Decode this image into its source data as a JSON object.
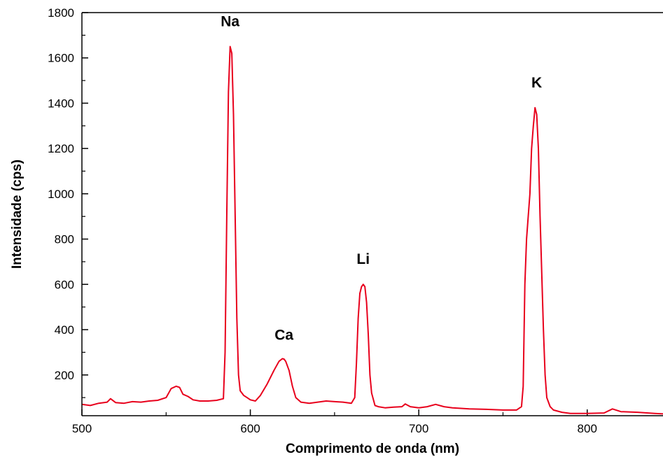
{
  "chart_data": {
    "type": "line",
    "title": "",
    "xlabel": "Comprimento de onda (nm)",
    "ylabel": "Intensidade (cps)",
    "xlim": [
      500,
      845
    ],
    "ylim": [
      20,
      1800
    ],
    "x_ticks": [
      500,
      600,
      700,
      800
    ],
    "y_ticks": [
      200,
      400,
      600,
      800,
      1000,
      1200,
      1400,
      1600,
      1800
    ],
    "grid": false,
    "line_color": "#e8001c",
    "series": [
      {
        "x": [
          500,
          505,
          510,
          515,
          517,
          520,
          525,
          530,
          535,
          540,
          545,
          550,
          553,
          556,
          558,
          560,
          563,
          566,
          570,
          575,
          580,
          584,
          585,
          586,
          587,
          588,
          589,
          590,
          591,
          592,
          593,
          594,
          596,
          598,
          600,
          603,
          606,
          610,
          614,
          617,
          619,
          620,
          621,
          623,
          625,
          627,
          630,
          635,
          640,
          645,
          650,
          655,
          660,
          662,
          663,
          664,
          665,
          666,
          667,
          668,
          669,
          670,
          671,
          672,
          674,
          676,
          680,
          685,
          690,
          692,
          695,
          700,
          705,
          710,
          715,
          720,
          730,
          740,
          750,
          758,
          761,
          762,
          763,
          764,
          765,
          766,
          767,
          768,
          769,
          770,
          771,
          772,
          773,
          774,
          775,
          776,
          778,
          780,
          785,
          790,
          800,
          810,
          815,
          820,
          830,
          840,
          845
        ],
        "y": [
          70,
          65,
          75,
          80,
          95,
          78,
          75,
          82,
          80,
          85,
          88,
          100,
          140,
          150,
          145,
          115,
          105,
          90,
          85,
          85,
          88,
          95,
          300,
          900,
          1450,
          1650,
          1620,
          1350,
          900,
          450,
          200,
          130,
          110,
          100,
          90,
          85,
          110,
          160,
          220,
          260,
          272,
          270,
          260,
          220,
          150,
          100,
          80,
          75,
          80,
          85,
          82,
          80,
          75,
          100,
          250,
          450,
          560,
          590,
          600,
          590,
          520,
          380,
          200,
          120,
          65,
          60,
          55,
          58,
          60,
          72,
          60,
          55,
          60,
          70,
          60,
          55,
          50,
          48,
          45,
          45,
          60,
          150,
          600,
          800,
          900,
          1000,
          1200,
          1300,
          1380,
          1350,
          1200,
          900,
          650,
          400,
          200,
          100,
          60,
          45,
          35,
          30,
          30,
          32,
          50,
          38,
          35,
          30,
          28
        ]
      }
    ],
    "annotations": [
      {
        "text": "Na",
        "x": 588,
        "y": 1740
      },
      {
        "text": "Ca",
        "x": 620,
        "y": 355
      },
      {
        "text": "Li",
        "x": 667,
        "y": 690
      },
      {
        "text": "K",
        "x": 770,
        "y": 1470
      }
    ]
  }
}
